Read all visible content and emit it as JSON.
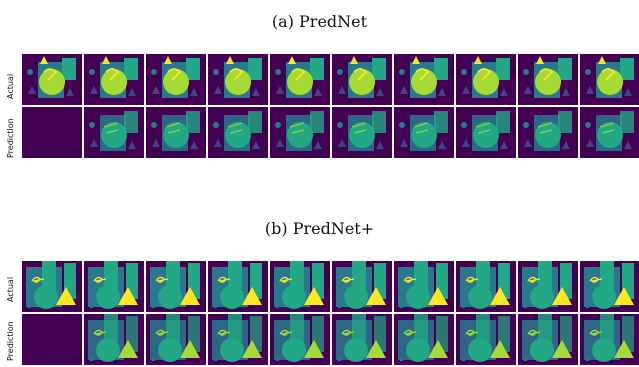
{
  "figure": {
    "panel_a": {
      "caption": "(a) PredNet",
      "row_labels": [
        "Actual",
        "Prediction"
      ],
      "frames": 10
    },
    "panel_b": {
      "caption": "(b) PredNet+",
      "row_labels": [
        "Actual",
        "Prediction"
      ],
      "frames": 10
    }
  },
  "colors": {
    "background": "#440154",
    "teal": "#2a788e",
    "green": "#22a884",
    "lime": "#a6db36",
    "yellow": "#fde725",
    "purple_mid": "#414487"
  }
}
